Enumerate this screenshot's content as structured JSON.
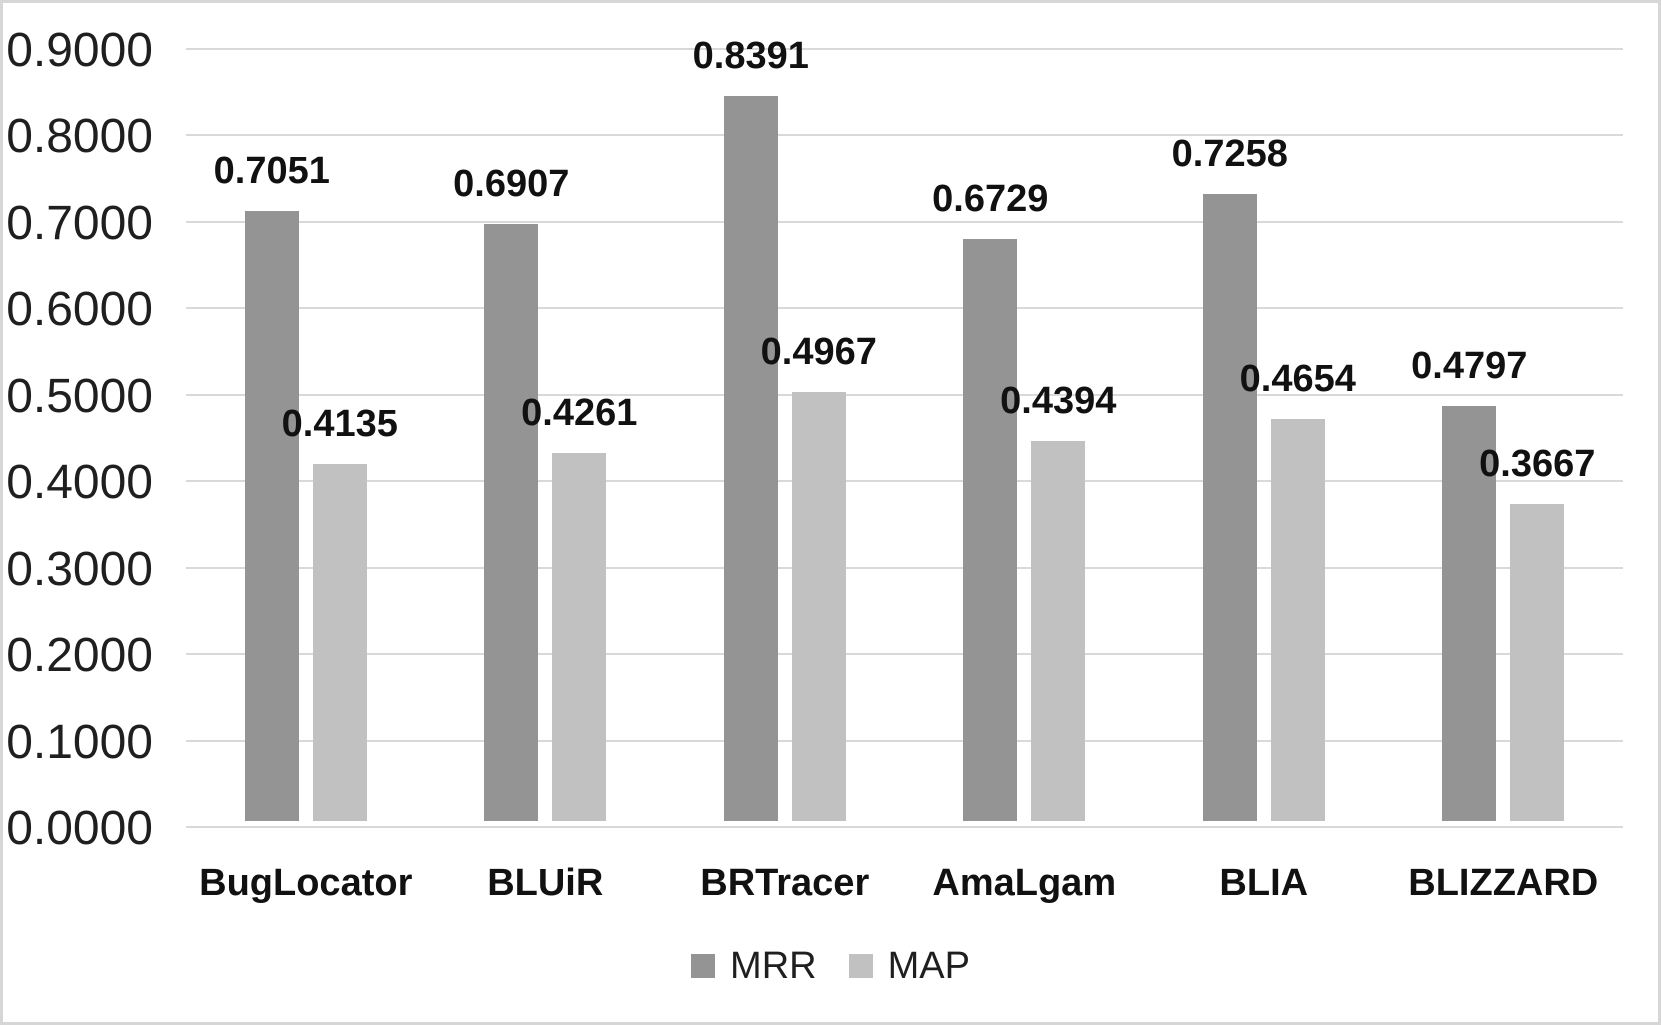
{
  "chart_data": {
    "type": "bar",
    "title": "",
    "xlabel": "",
    "ylabel": "",
    "categories": [
      "BugLocator",
      "BLUiR",
      "BRTracer",
      "AmaLgam",
      "BLIA",
      "BLIZZARD"
    ],
    "series": [
      {
        "name": "MRR",
        "color": "#949494",
        "values": [
          0.7051,
          0.6907,
          0.8391,
          0.6729,
          0.7258,
          0.4797
        ],
        "labels": [
          "0.7051",
          "0.6907",
          "0.8391",
          "0.6729",
          "0.7258",
          "0.4797"
        ]
      },
      {
        "name": "MAP",
        "color": "#c1c1c1",
        "values": [
          0.4135,
          0.4261,
          0.4967,
          0.4394,
          0.4654,
          0.3667
        ],
        "labels": [
          "0.4135",
          "0.4261",
          "0.4967",
          "0.4394",
          "0.4654",
          "0.3667"
        ]
      }
    ],
    "y_ticks": [
      "0.0000",
      "0.1000",
      "0.2000",
      "0.3000",
      "0.4000",
      "0.5000",
      "0.6000",
      "0.7000",
      "0.8000",
      "0.9000"
    ],
    "ylim": [
      0.0,
      0.9
    ],
    "grid": true,
    "gridline_color": "#d9d9d9",
    "legend_position": "bottom",
    "legend": [
      "MRR",
      "MAP"
    ]
  }
}
